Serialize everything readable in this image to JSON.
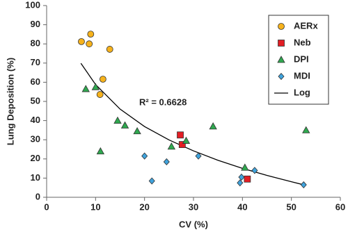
{
  "chart_data": {
    "type": "scatter",
    "x_label": "CV (%)",
    "y_label": "Lung Deposition (%)",
    "xlim": [
      0,
      60
    ],
    "xticks": [
      0,
      10,
      20,
      30,
      40,
      50,
      60
    ],
    "ylim": [
      0,
      100
    ],
    "yticks": [
      0,
      10,
      20,
      30,
      40,
      50,
      60,
      70,
      80,
      90,
      100
    ],
    "grid": false,
    "legend_position": "upper right",
    "annotation": "R² = 0.6628",
    "series": [
      {
        "name": "AERx",
        "marker": "circle",
        "color": "#f6b21c",
        "x": [
          7.1,
          9.0,
          8.7,
          12.9,
          11.5,
          10.9
        ],
        "values": [
          81.2,
          85.1,
          80,
          77.2,
          61.6,
          53.6
        ]
      },
      {
        "name": "Neb",
        "marker": "square",
        "color": "#e31e24",
        "x": [
          27.3,
          27.7,
          41
        ],
        "values": [
          32.5,
          27.5,
          9.5
        ]
      },
      {
        "name": "DPI",
        "marker": "triangle",
        "color": "#2fa84f",
        "x": [
          8,
          10,
          11,
          14.5,
          16,
          18.5,
          25.5,
          28.5,
          34,
          40.5,
          53
        ],
        "values": [
          56.5,
          57.5,
          24,
          40,
          37.5,
          34.5,
          26.5,
          29.5,
          37,
          15.5,
          35
        ]
      },
      {
        "name": "MDI",
        "marker": "diamond",
        "color": "#3fa3dd",
        "x": [
          20,
          21.5,
          24.5,
          31,
          39.5,
          39.8,
          42.5,
          52.5
        ],
        "values": [
          21.5,
          8.5,
          18.5,
          21.5,
          7.5,
          10.5,
          14,
          6.5
        ]
      },
      {
        "name": "Log",
        "marker": "line",
        "color": "#000000",
        "x": [
          7,
          10,
          15,
          20,
          25,
          30,
          35,
          40,
          45,
          50,
          52.5
        ],
        "values": [
          69.9,
          58.8,
          46.0,
          36.9,
          29.9,
          24.2,
          19.3,
          15.1,
          11.4,
          8.1,
          6.5
        ]
      }
    ]
  }
}
